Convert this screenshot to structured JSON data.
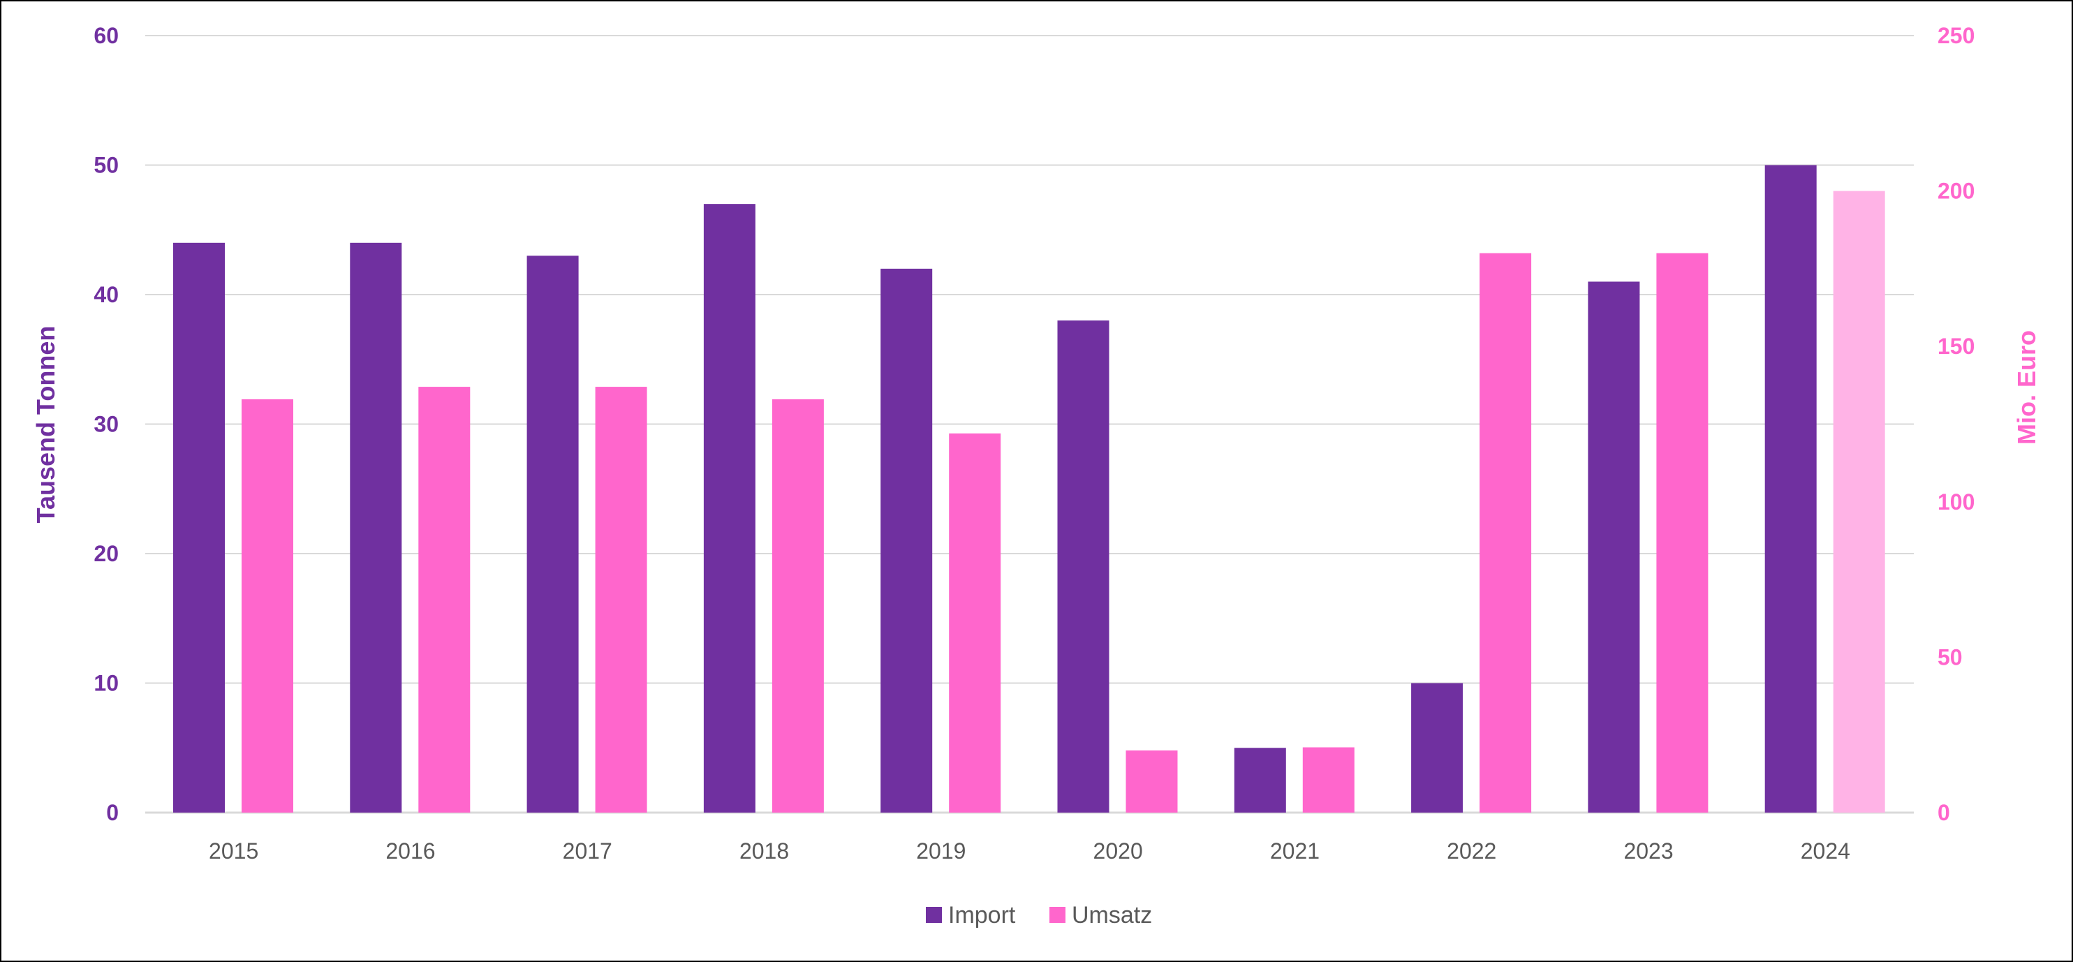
{
  "chart_data": {
    "type": "bar",
    "title": "",
    "categories": [
      "2015",
      "2016",
      "2017",
      "2018",
      "2019",
      "2020",
      "2021",
      "2022",
      "2023",
      "2024"
    ],
    "series": [
      {
        "name": "Import",
        "axis": "left",
        "color": "#7030A0",
        "values": [
          44,
          44,
          43,
          47,
          42,
          38,
          5,
          10,
          41,
          50
        ]
      },
      {
        "name": "Umsatz",
        "axis": "right",
        "color": "#FF66CC",
        "highlight_last_color": "#FFB3E6",
        "values": [
          133,
          137,
          137,
          133,
          122,
          20,
          21,
          180,
          180,
          200
        ]
      }
    ],
    "ylabel": "Tausend Tonnen",
    "ylabel_color": "#7030A0",
    "ylim": [
      0,
      60
    ],
    "yticks": [
      "0",
      "10",
      "20",
      "30",
      "40",
      "50",
      "60"
    ],
    "y2label": "Mio. Euro",
    "y2label_color": "#FF66CC",
    "y2lim": [
      0,
      250
    ],
    "y2ticks": [
      "0",
      "50",
      "100",
      "150",
      "200",
      "250"
    ],
    "grid": true,
    "legend": "bottom-center"
  }
}
